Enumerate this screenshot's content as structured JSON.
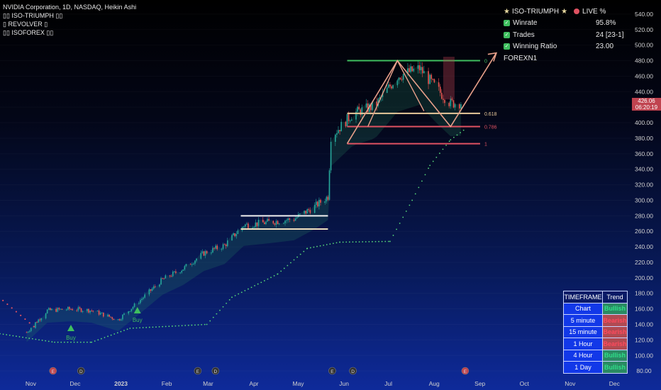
{
  "legend": {
    "title": "NVIDIA Corporation, 1D, NASDAQ, Heikin Ashi",
    "indicators": [
      "▯▯ ISO-TRIUMPH ▯▯",
      "▯ REVOLVER ▯",
      "▯▯ ISOFOREX ▯▯"
    ]
  },
  "stats": {
    "title": "ISO-TRIUMPH",
    "live_label": "LIVE %",
    "rows": [
      {
        "label": "Winrate",
        "value": "95.8%"
      },
      {
        "label": "Trades",
        "value": "24 [23-1]"
      },
      {
        "label": "Winning Ratio",
        "value": "23.00"
      }
    ],
    "footer": "FOREXN1"
  },
  "timeframe_table": {
    "header": [
      "TIMEFRAME",
      "Trend"
    ],
    "rows": [
      {
        "tf": "Chart",
        "trend": "Bullish"
      },
      {
        "tf": "5 minute",
        "trend": "Bearish"
      },
      {
        "tf": "15 minute",
        "trend": "Bearish"
      },
      {
        "tf": "1 Hour",
        "trend": "Bearish"
      },
      {
        "tf": "4 Hour",
        "trend": "Bullish"
      },
      {
        "tf": "1 Day",
        "trend": "Bullish"
      }
    ]
  },
  "price_tag": {
    "price": "426.06",
    "countdown": "06:20:19"
  },
  "colors": {
    "bull": "#26a69a",
    "bear": "#ef5350",
    "fib_green": "#3fbf5f",
    "fib_gold": "#e8c89a",
    "fib_red": "#e05262",
    "zigzag": "#e8a08a"
  },
  "chart_data": {
    "type": "candlestick",
    "title": "NVIDIA Corporation, 1D, NASDAQ, Heikin Ashi",
    "y_axis": {
      "side": "right",
      "ticks": [
        80,
        100,
        120,
        140,
        160,
        180,
        200,
        220,
        240,
        260,
        280,
        300,
        320,
        340,
        360,
        380,
        400,
        420,
        440,
        460,
        480,
        500,
        520,
        540
      ]
    },
    "x_axis": {
      "ticks": [
        "Nov",
        "Dec",
        "2023",
        "Feb",
        "Mar",
        "Apr",
        "May",
        "Jun",
        "Jul",
        "Aug",
        "Sep",
        "Oct",
        "Nov",
        "Dec"
      ]
    },
    "close_path": [
      [
        "2022-11-01",
        130
      ],
      [
        "2022-11-15",
        158
      ],
      [
        "2022-12-01",
        160
      ],
      [
        "2022-12-15",
        158
      ],
      [
        "2023-01-02",
        146
      ],
      [
        "2023-01-15",
        168
      ],
      [
        "2023-02-01",
        198
      ],
      [
        "2023-02-15",
        212
      ],
      [
        "2023-03-01",
        232
      ],
      [
        "2023-03-15",
        242
      ],
      [
        "2023-03-28",
        268
      ],
      [
        "2023-04-15",
        272
      ],
      [
        "2023-05-01",
        276
      ],
      [
        "2023-05-15",
        292
      ],
      [
        "2023-05-24",
        305
      ],
      [
        "2023-05-26",
        382
      ],
      [
        "2023-06-10",
        412
      ],
      [
        "2023-06-25",
        422
      ],
      [
        "2023-07-10",
        460
      ],
      [
        "2023-07-25",
        470
      ],
      [
        "2023-08-05",
        445
      ],
      [
        "2023-08-15",
        425
      ],
      [
        "2023-08-22",
        426
      ]
    ],
    "fib_levels": [
      {
        "label": "0",
        "price": 480
      },
      {
        "label": "0.618",
        "price": 412
      },
      {
        "label": "0.786",
        "price": 395
      },
      {
        "label": "1",
        "price": 373
      }
    ],
    "range_lines": [
      280,
      263
    ],
    "signals": [
      {
        "label": "Buy",
        "date": "2022-12-01"
      },
      {
        "label": "Buy",
        "date": "2023-01-15"
      }
    ],
    "trailing_stop": "green dotted line below price",
    "last_price": 426.06
  }
}
